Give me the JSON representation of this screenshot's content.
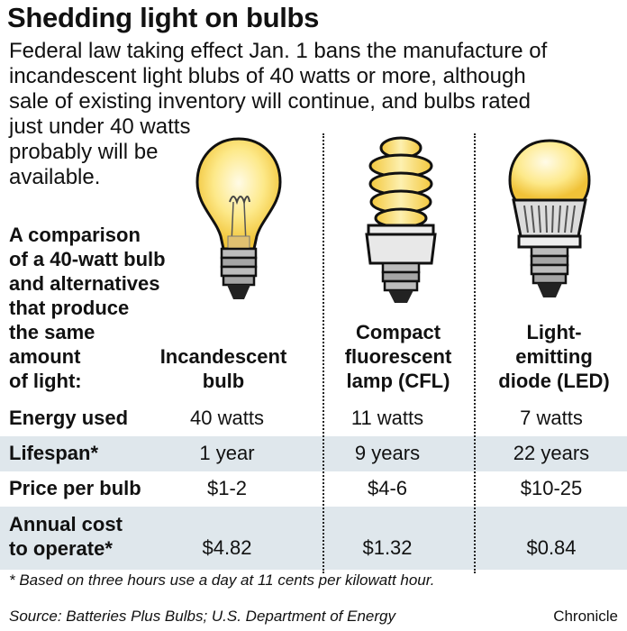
{
  "title": "Shedding light on bulbs",
  "intro_lines": [
    "Federal law taking effect Jan. 1 bans the manufacture of",
    "incandescent light blubs of 40 watts or more, although",
    "sale of  existing inventory will continue, and bulbs rated",
    "just under 40 watts",
    "probably will be",
    "available."
  ],
  "comparison_lines": [
    "A comparison",
    "of a 40-watt bulb",
    "and alternatives",
    "that produce",
    "the same",
    "amount",
    "of light:"
  ],
  "columns": [
    {
      "lines": [
        "Incandescent",
        "bulb"
      ],
      "icon": "incandescent-bulb-icon"
    },
    {
      "lines": [
        "Compact",
        "fluorescent",
        "lamp (CFL)"
      ],
      "icon": "cfl-bulb-icon"
    },
    {
      "lines": [
        "Light-",
        "emitting",
        "diode (LED)"
      ],
      "icon": "led-bulb-icon"
    }
  ],
  "rows": [
    {
      "label": [
        "Energy used"
      ],
      "values": [
        "40 watts",
        "11 watts",
        "7 watts"
      ]
    },
    {
      "label": [
        "Lifespan*"
      ],
      "values": [
        "1 year",
        "9 years",
        "22 years"
      ]
    },
    {
      "label": [
        "Price per bulb"
      ],
      "values": [
        "$1-2",
        "$4-6",
        "$10-25"
      ]
    },
    {
      "label": [
        "Annual cost",
        "to operate*"
      ],
      "values": [
        "$4.82",
        "$1.32",
        "$0.84"
      ]
    }
  ],
  "footnote": "* Based on three hours use a day at 11 cents per kilowatt hour.",
  "source": "Source: Batteries Plus Bulbs; U.S. Department of Energy",
  "credit": "Chronicle",
  "colors": {
    "bulb_glow": "#f6d24a",
    "bulb_light": "#fdf4c4",
    "metal": "#9a9a9a",
    "row_shade": "#dfe7ec"
  }
}
